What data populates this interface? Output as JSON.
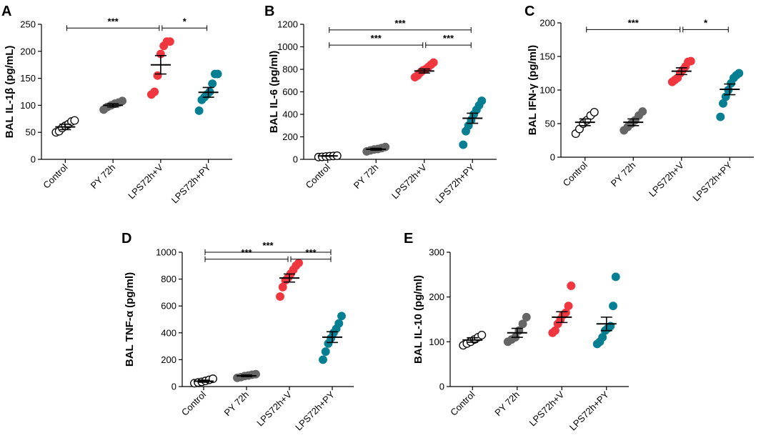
{
  "figure": {
    "colors": {
      "control": "#ffffff",
      "py": "#666666",
      "lps_v": "#f0363f",
      "lps_py": "#077f93",
      "ink": "#000000"
    }
  },
  "chart_data": [
    {
      "type": "scatter",
      "panel": "A",
      "ylabel": "BAL IL-1β (pg/mL)",
      "ylim": [
        0,
        250
      ],
      "yticks": [
        0,
        50,
        100,
        150,
        200,
        250
      ],
      "categories": [
        "Control",
        "PY 72h",
        "LPS72h+V",
        "LPS72h+PY"
      ],
      "series": [
        {
          "name": "Control",
          "mean": 60,
          "sem": 5,
          "points": [
            50,
            52,
            58,
            62,
            65,
            70,
            72
          ]
        },
        {
          "name": "PY 72h",
          "mean": 100,
          "sem": 3,
          "points": [
            92,
            97,
            100,
            103,
            105,
            108
          ]
        },
        {
          "name": "LPS72h+V",
          "mean": 175,
          "sem": 17,
          "points": [
            120,
            125,
            155,
            195,
            210,
            218,
            218
          ]
        },
        {
          "name": "LPS72h+PY",
          "mean": 124,
          "sem": 9,
          "points": [
            90,
            110,
            115,
            120,
            125,
            140,
            158,
            158
          ]
        }
      ],
      "comparisons": [
        {
          "from": 0,
          "to": 2,
          "label": "***",
          "y": 243
        },
        {
          "from": 2,
          "to": 3,
          "label": "*",
          "y": 243
        }
      ]
    },
    {
      "type": "scatter",
      "panel": "B",
      "ylabel": "BAL IL-6 (pg/ml)",
      "ylim": [
        0,
        1200
      ],
      "yticks": [
        0,
        200,
        400,
        600,
        800,
        1000,
        1200
      ],
      "categories": [
        "Control",
        "PY 72h",
        "LPS72h+V",
        "LPS72h+PY"
      ],
      "series": [
        {
          "name": "Control",
          "mean": 30,
          "sem": 3,
          "points": [
            20,
            22,
            25,
            28,
            30,
            32
          ]
        },
        {
          "name": "PY 72h",
          "mean": 90,
          "sem": 8,
          "points": [
            70,
            80,
            88,
            92,
            100,
            110
          ]
        },
        {
          "name": "LPS72h+V",
          "mean": 785,
          "sem": 18,
          "points": [
            730,
            745,
            770,
            790,
            800,
            820,
            840,
            860
          ]
        },
        {
          "name": "LPS72h+PY",
          "mean": 365,
          "sem": 45,
          "points": [
            130,
            250,
            300,
            350,
            400,
            440,
            480,
            520
          ]
        }
      ],
      "comparisons": [
        {
          "from": 0,
          "to": 3,
          "label": "***",
          "y": 1150
        },
        {
          "from": 0,
          "to": 2,
          "label": "***",
          "y": 1015
        },
        {
          "from": 2,
          "to": 3,
          "label": "***",
          "y": 1015
        }
      ]
    },
    {
      "type": "scatter",
      "panel": "C",
      "ylabel": "BAL IFN-γ (pg/ml)",
      "ylim": [
        0,
        200
      ],
      "yticks": [
        0,
        50,
        100,
        150,
        200
      ],
      "categories": [
        "Control",
        "PY 72h",
        "LPS72h+V",
        "LPS72h+PY"
      ],
      "series": [
        {
          "name": "Control",
          "mean": 52,
          "sem": 5,
          "points": [
            35,
            42,
            50,
            55,
            62,
            67
          ]
        },
        {
          "name": "PY 72h",
          "mean": 52,
          "sem": 5,
          "points": [
            40,
            45,
            50,
            55,
            62,
            68
          ]
        },
        {
          "name": "LPS72h+V",
          "mean": 128,
          "sem": 5,
          "points": [
            112,
            115,
            118,
            125,
            130,
            135,
            142,
            143
          ]
        },
        {
          "name": "LPS72h+PY",
          "mean": 101,
          "sem": 8,
          "points": [
            60,
            80,
            90,
            100,
            110,
            118,
            122,
            125
          ]
        }
      ],
      "comparisons": [
        {
          "from": 0,
          "to": 2,
          "label": "***",
          "y": 190
        },
        {
          "from": 2,
          "to": 3,
          "label": "*",
          "y": 190
        }
      ]
    },
    {
      "type": "scatter",
      "panel": "D",
      "ylabel": "BAL TNF-α (pg/ml)",
      "ylim": [
        0,
        1000
      ],
      "yticks": [
        0,
        200,
        400,
        600,
        800,
        1000
      ],
      "categories": [
        "Control",
        "PY 72h",
        "LPS72h+V",
        "LPS72h+PY"
      ],
      "series": [
        {
          "name": "Control",
          "mean": 40,
          "sem": 8,
          "points": [
            25,
            30,
            35,
            42,
            50,
            58
          ]
        },
        {
          "name": "PY 72h",
          "mean": 80,
          "sem": 6,
          "points": [
            65,
            70,
            78,
            82,
            88,
            92
          ]
        },
        {
          "name": "LPS72h+V",
          "mean": 808,
          "sem": 30,
          "points": [
            670,
            740,
            790,
            810,
            840,
            870,
            900,
            920
          ]
        },
        {
          "name": "LPS72h+PY",
          "mean": 368,
          "sem": 40,
          "points": [
            200,
            260,
            320,
            360,
            400,
            430,
            470,
            525
          ]
        }
      ],
      "comparisons": [
        {
          "from": 0,
          "to": 3,
          "label": "***",
          "y": 1000
        },
        {
          "from": 0,
          "to": 2,
          "label": "***",
          "y": 948
        },
        {
          "from": 2,
          "to": 3,
          "label": "***",
          "y": 948
        }
      ]
    },
    {
      "type": "scatter",
      "panel": "E",
      "ylabel": "BAL IL-10 (pg/ml)",
      "ylim": [
        0,
        300
      ],
      "yticks": [
        0,
        100,
        200,
        300
      ],
      "categories": [
        "Control",
        "PY 72h",
        "LPS72h+V",
        "LPS72h+PY"
      ],
      "series": [
        {
          "name": "Control",
          "mean": 104,
          "sem": 5,
          "points": [
            92,
            96,
            100,
            105,
            110,
            115
          ]
        },
        {
          "name": "PY 72h",
          "mean": 120,
          "sem": 10,
          "points": [
            100,
            105,
            110,
            125,
            140,
            155
          ]
        },
        {
          "name": "LPS72h+V",
          "mean": 155,
          "sem": 12,
          "points": [
            120,
            125,
            140,
            150,
            160,
            165,
            180,
            225
          ]
        },
        {
          "name": "LPS72h+PY",
          "mean": 140,
          "sem": 15,
          "points": [
            95,
            100,
            110,
            125,
            130,
            135,
            180,
            245
          ]
        }
      ],
      "comparisons": []
    }
  ]
}
